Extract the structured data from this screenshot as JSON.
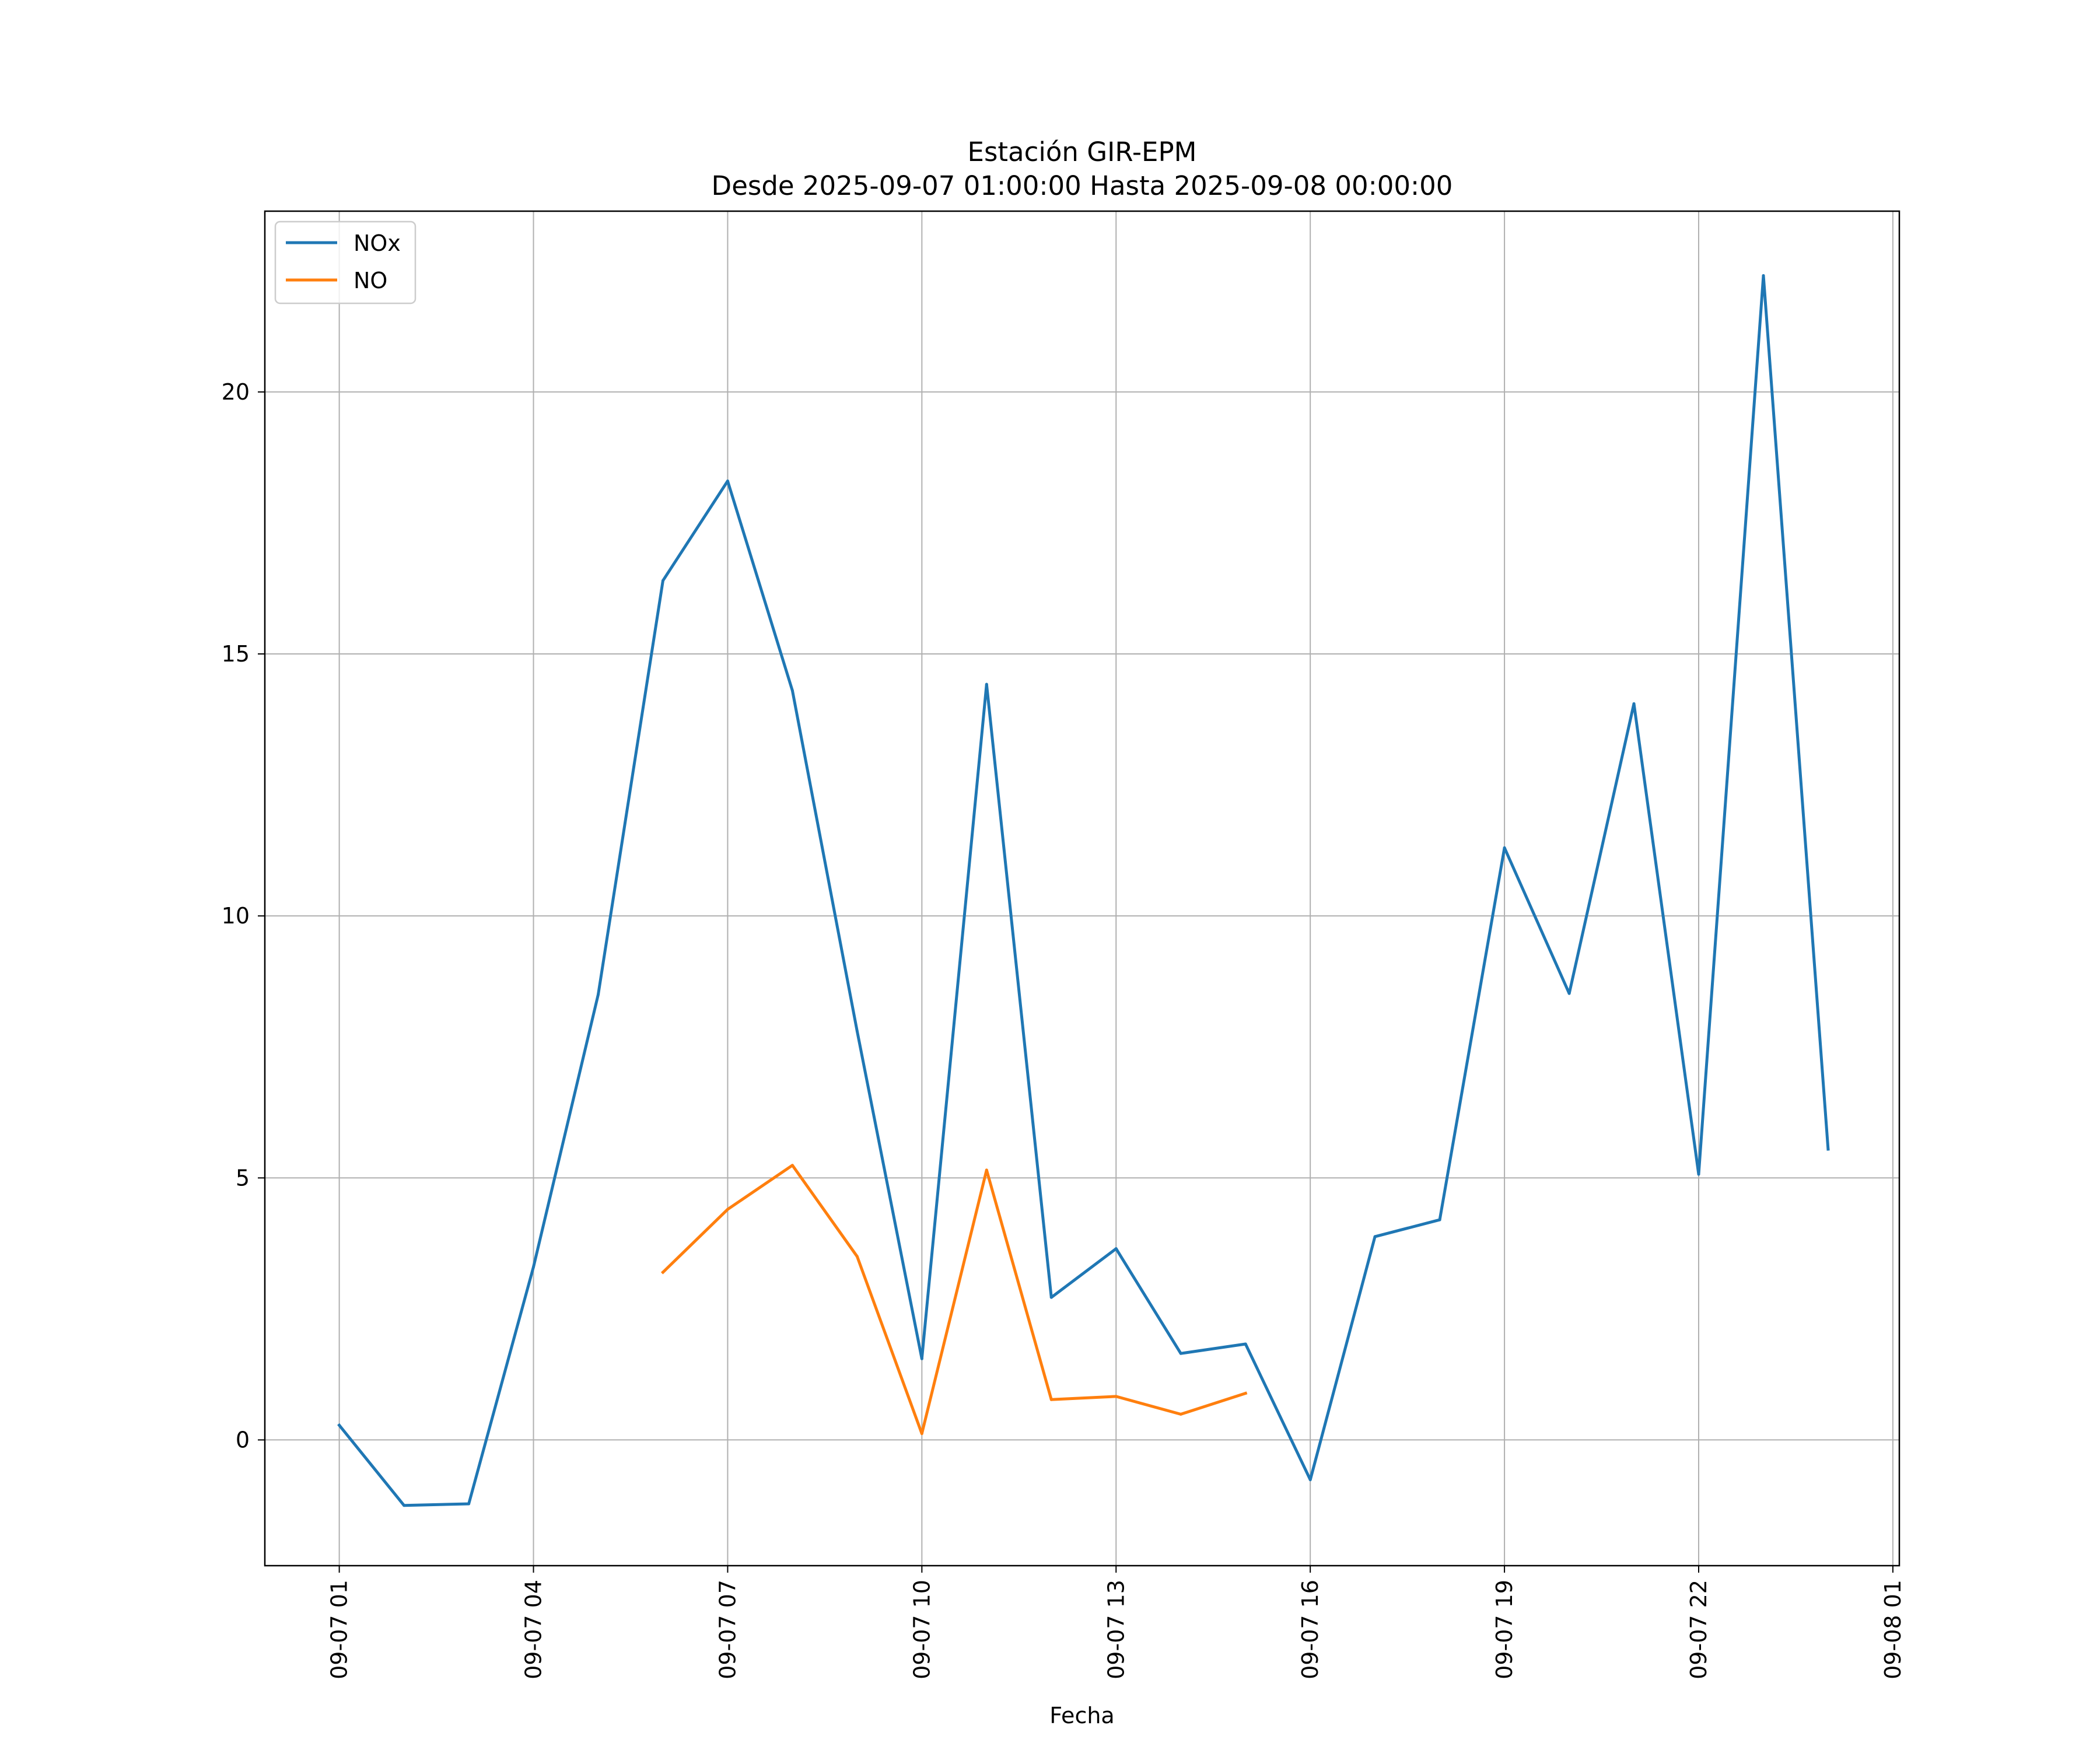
{
  "chart_data": {
    "type": "line",
    "title": "Estación GIR-EPM",
    "subtitle": "Desde 2025-09-07 01:00:00 Hasta 2025-09-08 00:00:00",
    "xlabel": "Fecha",
    "ylabel": "",
    "x_tick_labels": [
      "09-07 01",
      "09-07 04",
      "09-07 07",
      "09-07 10",
      "09-07 13",
      "09-07 16",
      "09-07 19",
      "09-07 22",
      "09-08 01"
    ],
    "x_ticks_hours": [
      1,
      4,
      7,
      10,
      13,
      16,
      19,
      22,
      25
    ],
    "y_ticks": [
      0,
      5,
      10,
      15,
      20
    ],
    "y_tick_labels": [
      "0",
      "5",
      "10",
      "15",
      "20"
    ],
    "xlim_hours": [
      -0.15,
      25.1
    ],
    "ylim": [
      -2.4,
      23.45
    ],
    "grid": true,
    "legend_position": "upper left",
    "series": [
      {
        "name": "NOx",
        "color": "#1f77b4",
        "x": [
          "2025-09-07 01:00",
          "2025-09-07 02:00",
          "2025-09-07 03:00",
          "2025-09-07 04:00",
          "2025-09-07 05:00",
          "2025-09-07 06:00",
          "2025-09-07 07:00",
          "2025-09-07 08:00",
          "2025-09-07 09:00",
          "2025-09-07 10:00",
          "2025-09-07 11:00",
          "2025-09-07 12:00",
          "2025-09-07 13:00",
          "2025-09-07 14:00",
          "2025-09-07 15:00",
          "2025-09-07 16:00",
          "2025-09-07 17:00",
          "2025-09-07 18:00",
          "2025-09-07 19:00",
          "2025-09-07 20:00",
          "2025-09-07 21:00",
          "2025-09-07 22:00",
          "2025-09-07 23:00",
          "2025-09-08 00:00"
        ],
        "values": [
          0.28,
          -1.25,
          -1.22,
          3.3,
          8.5,
          16.4,
          18.3,
          14.3,
          7.8,
          1.55,
          14.42,
          2.72,
          3.65,
          1.65,
          1.83,
          -0.76,
          3.88,
          4.2,
          11.3,
          8.52,
          14.05,
          5.07,
          22.22,
          5.55
        ]
      },
      {
        "name": "NO",
        "color": "#ff7f0e",
        "x": [
          "2025-09-07 06:00",
          "2025-09-07 07:00",
          "2025-09-07 08:00",
          "2025-09-07 09:00",
          "2025-09-07 10:00",
          "2025-09-07 11:00",
          "2025-09-07 12:00",
          "2025-09-07 13:00",
          "2025-09-07 14:00",
          "2025-09-07 15:00"
        ],
        "values": [
          3.2,
          4.4,
          5.24,
          3.5,
          0.12,
          5.15,
          0.77,
          0.83,
          0.49,
          0.89
        ]
      }
    ]
  }
}
